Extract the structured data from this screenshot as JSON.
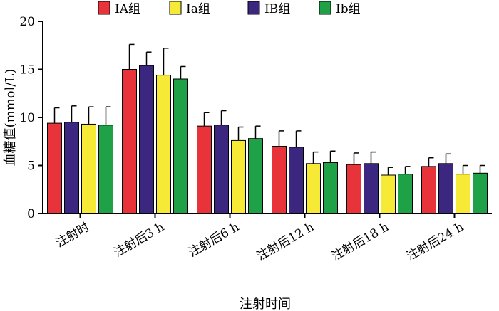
{
  "chart_data": {
    "type": "bar",
    "title": "",
    "xlabel": "注射时间",
    "ylabel": "血糖值(mmol/L)",
    "ylim": [
      0,
      20
    ],
    "yticks": [
      "0",
      "5",
      "10",
      "15",
      "20"
    ],
    "categories": [
      "注射时",
      "注射后3 h",
      "注射后6 h",
      "注射后12 h",
      "注射后18 h",
      "注射后24 h"
    ],
    "series": [
      {
        "name": "ⅠA组",
        "color": "#e8333a",
        "values": [
          9.4,
          15.0,
          9.1,
          7.0,
          5.1,
          4.9
        ],
        "errors": [
          1.6,
          2.6,
          1.4,
          1.6,
          1.2,
          0.9
        ]
      },
      {
        "name": "Ⅰa组",
        "color": "#f7ea37",
        "values": [
          9.3,
          14.4,
          7.6,
          5.2,
          4.0,
          4.1
        ],
        "errors": [
          1.8,
          2.8,
          1.4,
          1.2,
          0.8,
          0.9
        ]
      },
      {
        "name": "ⅠB组",
        "color": "#3b2680",
        "values": [
          9.5,
          15.4,
          9.2,
          6.9,
          5.2,
          5.2
        ],
        "errors": [
          1.7,
          1.4,
          1.5,
          1.7,
          1.2,
          1.0
        ]
      },
      {
        "name": "Ⅰb组",
        "color": "#1fa148",
        "values": [
          9.2,
          14.0,
          7.8,
          5.3,
          4.1,
          4.2
        ],
        "errors": [
          1.9,
          1.3,
          1.3,
          1.2,
          0.8,
          0.8
        ]
      }
    ],
    "bar_order": [
      0,
      2,
      1,
      3
    ],
    "legend_position": "top",
    "grid": false
  }
}
